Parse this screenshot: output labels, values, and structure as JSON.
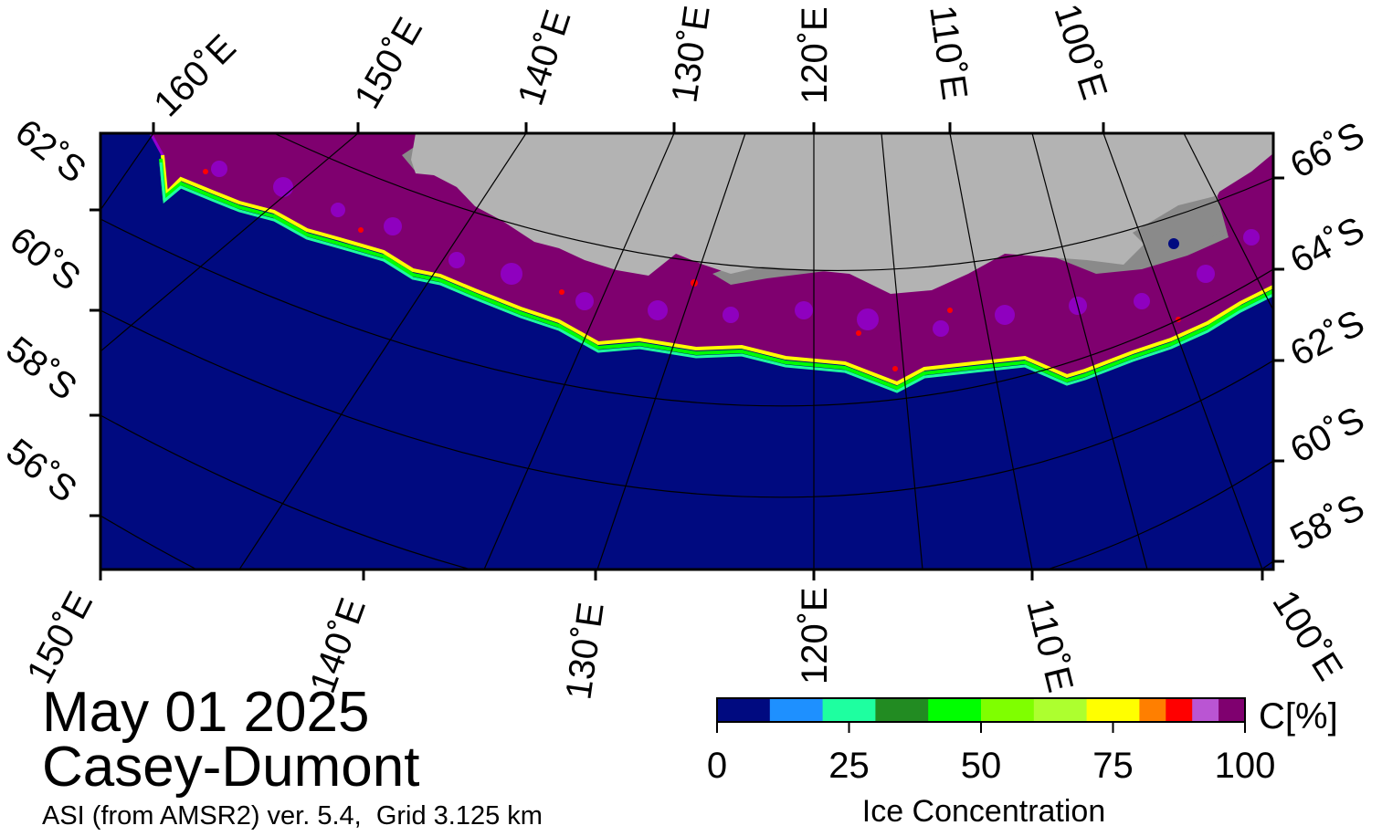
{
  "map": {
    "date": "May 01 2025",
    "region": "Casey-Dumont",
    "product": "ASI (from AMSR2) ver. 5.4,  Grid 3.125 km",
    "colors": {
      "ocean": "#000a80",
      "land": "#b3b3b3",
      "ice_shelf": "#8a8a8a",
      "ice_high": "#7f006f"
    },
    "top_meridian_labels": [
      "160˚E",
      "150˚E",
      "140˚E",
      "130˚E",
      "120˚E",
      "110˚E",
      "100˚E"
    ],
    "bottom_meridian_labels": [
      "150˚E",
      "140˚E",
      "130˚E",
      "120˚E",
      "110˚E",
      "100˚E"
    ],
    "left_parallel_labels": [
      "62˚S",
      "60˚S",
      "58˚S",
      "56˚S"
    ],
    "right_parallel_labels": [
      "66˚S",
      "64˚S",
      "62˚S",
      "60˚S",
      "58˚S"
    ]
  },
  "colorbar": {
    "title": "Ice Concentration",
    "unit": "C[%]",
    "ticks": [
      "0",
      "25",
      "50",
      "75",
      "100"
    ],
    "colors": [
      "#000a80",
      "#1e90ff",
      "#1effa0",
      "#228b22",
      "#00ff00",
      "#7fff00",
      "#adff2f",
      "#ffff00",
      "#ff7f00",
      "#ff0000",
      "#ba55d3",
      "#9400d3",
      "#7f006f"
    ]
  }
}
